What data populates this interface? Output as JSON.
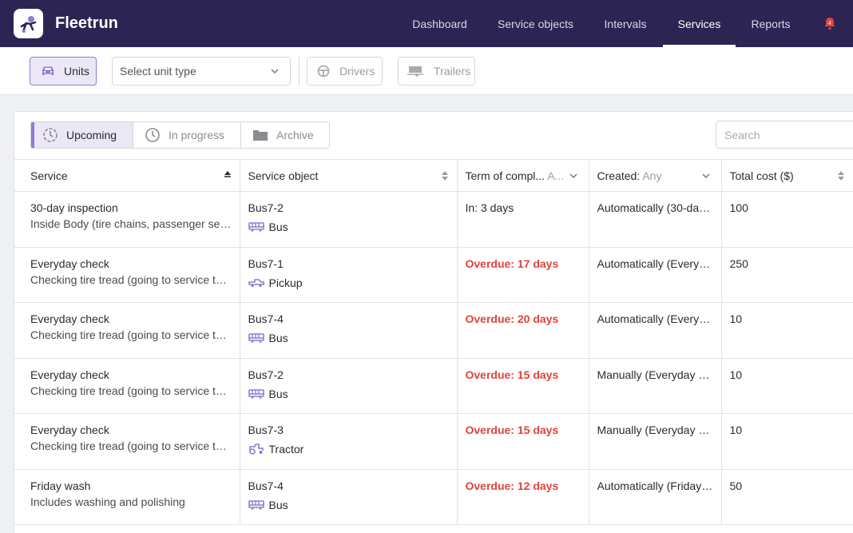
{
  "app": {
    "brand": "Fleetrun",
    "notifications_count": "4"
  },
  "nav": {
    "items": [
      {
        "label": "Dashboard"
      },
      {
        "label": "Service objects"
      },
      {
        "label": "Intervals"
      },
      {
        "label": "Services"
      },
      {
        "label": "Reports"
      }
    ],
    "active": "Services"
  },
  "filters": {
    "units_label": "Units",
    "unit_type_placeholder": "Select unit type",
    "drivers_label": "Drivers",
    "trailers_label": "Trailers"
  },
  "tabs": [
    {
      "label": "Upcoming"
    },
    {
      "label": "In progress"
    },
    {
      "label": "Archive"
    }
  ],
  "search": {
    "placeholder": "Search"
  },
  "table": {
    "headers": {
      "service": "Service",
      "service_object": "Service object",
      "term": "Term of compl...",
      "term_filter": "A...",
      "created": "Created:",
      "created_filter": "Any",
      "total_cost": "Total cost ($)"
    },
    "rows": [
      {
        "service": "30-day inspection",
        "description": "Inside Body (tire chains, passenger sea...",
        "object": "Bus7-2",
        "type": "Bus",
        "term": "In: 3 days",
        "created": "Automatically (30-day...",
        "cost": "100"
      },
      {
        "service": "Everyday check",
        "description": "Checking tire tread (going to service to ...",
        "object": "Bus7-1",
        "type": "Pickup",
        "term": "Overdue: 17 days",
        "created": "Automatically (Everyd...",
        "cost": "250"
      },
      {
        "service": "Everyday check",
        "description": "Checking tire tread (going to service to ...",
        "object": "Bus7-4",
        "type": "Bus",
        "term": "Overdue: 20 days",
        "created": "Automatically (Everyd...",
        "cost": "10"
      },
      {
        "service": "Everyday check",
        "description": "Checking tire tread (going to service to ...",
        "object": "Bus7-2",
        "type": "Bus",
        "term": "Overdue: 15 days",
        "created": "Manually (Everyday c...",
        "cost": "10"
      },
      {
        "service": "Everyday check",
        "description": "Checking tire tread (going to service to ...",
        "object": "Bus7-3",
        "type": "Tractor",
        "term": "Overdue: 15 days",
        "created": "Manually (Everyday c...",
        "cost": "10"
      },
      {
        "service": "Friday wash",
        "description": "Includes washing and polishing",
        "object": "Bus7-4",
        "type": "Bus",
        "term": "Overdue: 12 days",
        "created": "Automatically (Friday ...",
        "cost": "50"
      }
    ]
  },
  "colors": {
    "nav_bg": "#2c2554",
    "accent": "#8f7bd1",
    "overdue": "#e2433a",
    "bell": "#e2433a"
  }
}
